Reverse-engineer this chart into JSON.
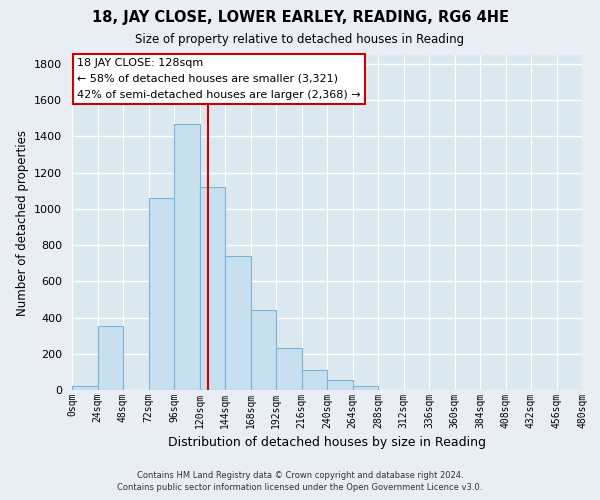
{
  "title1": "18, JAY CLOSE, LOWER EARLEY, READING, RG6 4HE",
  "title2": "Size of property relative to detached houses in Reading",
  "xlabel": "Distribution of detached houses by size in Reading",
  "ylabel": "Number of detached properties",
  "bar_color": "#c8dff0",
  "bar_edge_color": "#7ab3d3",
  "vline_color": "#cc0000",
  "vline_x": 128,
  "bin_edges": [
    0,
    24,
    48,
    72,
    96,
    120,
    144,
    168,
    192,
    216,
    240,
    264,
    288,
    312,
    336,
    360,
    384,
    408,
    432,
    456,
    480
  ],
  "bar_heights": [
    20,
    355,
    0,
    1060,
    1470,
    1120,
    740,
    440,
    230,
    110,
    55,
    20,
    0,
    0,
    0,
    0,
    0,
    0,
    0,
    0
  ],
  "tick_labels": [
    "0sqm",
    "24sqm",
    "48sqm",
    "72sqm",
    "96sqm",
    "120sqm",
    "144sqm",
    "168sqm",
    "192sqm",
    "216sqm",
    "240sqm",
    "264sqm",
    "288sqm",
    "312sqm",
    "336sqm",
    "360sqm",
    "384sqm",
    "408sqm",
    "432sqm",
    "456sqm",
    "480sqm"
  ],
  "annotation_title": "18 JAY CLOSE: 128sqm",
  "annotation_line1": "← 58% of detached houses are smaller (3,321)",
  "annotation_line2": "42% of semi-detached houses are larger (2,368) →",
  "annotation_box_color": "#ffffff",
  "annotation_box_edge": "#cc0000",
  "footer1": "Contains HM Land Registry data © Crown copyright and database right 2024.",
  "footer2": "Contains public sector information licensed under the Open Government Licence v3.0.",
  "ylim": [
    0,
    1850
  ],
  "background_color": "#e8eef4",
  "plot_bg_color": "#dce8f0",
  "grid_color": "#ffffff"
}
